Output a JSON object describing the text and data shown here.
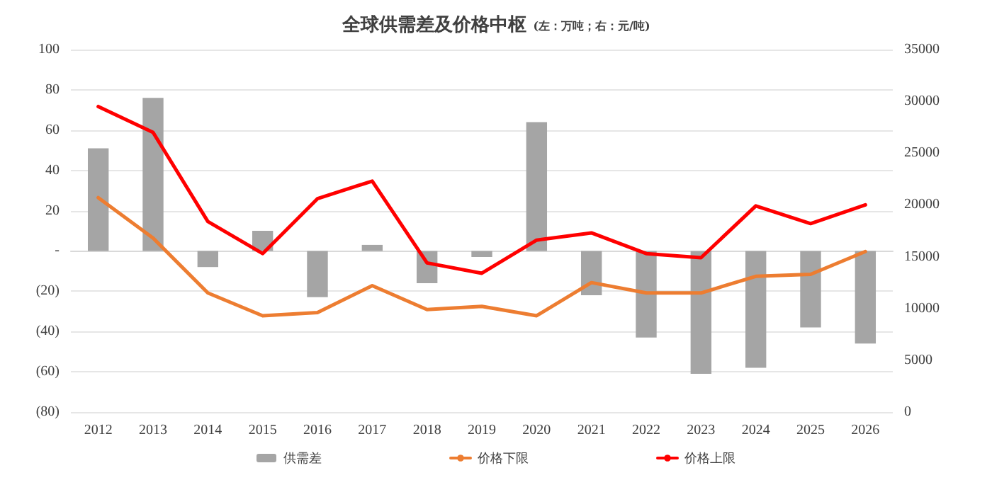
{
  "chart_data": {
    "type": "bar",
    "title": "全球供需差及价格中枢",
    "subtitle": "(左：万吨；右：元/吨)",
    "categories": [
      "2012",
      "2013",
      "2014",
      "2015",
      "2016",
      "2017",
      "2018",
      "2019",
      "2020",
      "2021",
      "2022",
      "2023",
      "2024",
      "2025",
      "2026"
    ],
    "series": [
      {
        "name": "供需差",
        "color": "#a5a5a5",
        "values": [
          51,
          76,
          -8,
          10,
          -23,
          3,
          -16,
          -3,
          64,
          -22,
          -43,
          -61,
          -58,
          -38,
          -46
        ]
      },
      {
        "name": "价格下限",
        "type": "line",
        "axis": "y2",
        "color": "#ed7d31",
        "values": [
          20700,
          16800,
          11500,
          9300,
          9600,
          12200,
          9900,
          10200,
          9300,
          12500,
          11500,
          11500,
          13100,
          13300,
          15500
        ]
      },
      {
        "name": "价格上限",
        "type": "line",
        "axis": "y2",
        "color": "#ff0000",
        "values": [
          29500,
          27000,
          18400,
          15300,
          20600,
          22300,
          14400,
          13400,
          16600,
          17300,
          15300,
          14900,
          19900,
          18200,
          20000
        ]
      }
    ],
    "ylim": [
      -80,
      100
    ],
    "yticks": [
      {
        "value": -80,
        "label": "(80)"
      },
      {
        "value": -60,
        "label": "(60)"
      },
      {
        "value": -40,
        "label": "(40)"
      },
      {
        "value": -20,
        "label": "(20)"
      },
      {
        "value": 0,
        "label": "-"
      },
      20,
      40,
      60,
      80,
      100
    ],
    "y2lim": [
      0,
      35000
    ],
    "y2ticks": [
      0,
      5000,
      10000,
      15000,
      20000,
      25000,
      30000,
      35000
    ],
    "grid": "y",
    "legend": "bottom",
    "marker": "none",
    "line_style": "solid"
  }
}
